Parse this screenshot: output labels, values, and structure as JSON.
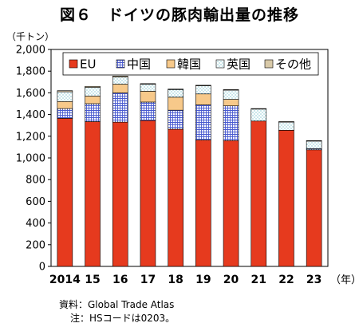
{
  "title": "図６　ドイツの豚肉輸出量の推移",
  "notes": {
    "source": "資料：Global Trade Atlas",
    "note": "注：HSコードは0203。"
  },
  "colors": {
    "EU": "#e63a1e",
    "china": "#4a5bd0",
    "korea": "#f7c98a",
    "uk": "#ffffff",
    "other": "#d8c9a8"
  },
  "chart_data": {
    "type": "bar",
    "stacked": true,
    "title": "図６　ドイツの豚肉輸出量の推移",
    "ylabel": "（千トン）",
    "xlabel": "（年）",
    "ylim": [
      0,
      2000
    ],
    "yticks": [
      "0",
      "200",
      "400",
      "600",
      "800",
      "1,000",
      "1,200",
      "1,400",
      "1,600",
      "1,800",
      "2,000"
    ],
    "categories": [
      "2014",
      "15",
      "16",
      "17",
      "18",
      "19",
      "20",
      "21",
      "22",
      "23"
    ],
    "legend_position": "top",
    "grid": false,
    "series": [
      {
        "name": "EU",
        "pattern": "solid",
        "values": [
          1365,
          1335,
          1330,
          1345,
          1265,
          1165,
          1160,
          1340,
          1255,
          1075
        ]
      },
      {
        "name": "中国",
        "pattern": "grid",
        "values": [
          90,
          165,
          270,
          170,
          175,
          325,
          320,
          0,
          0,
          10
        ]
      },
      {
        "name": "韓国",
        "pattern": "solid",
        "values": [
          65,
          70,
          80,
          100,
          120,
          100,
          60,
          0,
          0,
          0
        ]
      },
      {
        "name": "英国",
        "pattern": "dots",
        "values": [
          90,
          80,
          65,
          65,
          70,
          75,
          85,
          110,
          75,
          70
        ]
      },
      {
        "name": "その他",
        "pattern": "solid",
        "values": [
          10,
          10,
          10,
          5,
          5,
          5,
          5,
          5,
          5,
          5
        ]
      }
    ]
  }
}
